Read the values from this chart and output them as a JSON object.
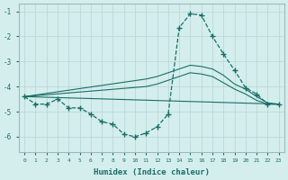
{
  "xlabel": "Humidex (Indice chaleur)",
  "background_color": "#d4eeee",
  "grid_color": "#c8dede",
  "line_color": "#1a6e66",
  "xlim": [
    -0.5,
    23.5
  ],
  "ylim": [
    -6.6,
    -0.7
  ],
  "yticks": [
    -1,
    -2,
    -3,
    -4,
    -5,
    -6
  ],
  "xticks": [
    0,
    1,
    2,
    3,
    4,
    5,
    6,
    7,
    8,
    9,
    10,
    11,
    12,
    13,
    14,
    15,
    16,
    17,
    18,
    19,
    20,
    21,
    22,
    23
  ],
  "curve_x": [
    0,
    1,
    2,
    3,
    4,
    5,
    6,
    7,
    8,
    9,
    10,
    11,
    12,
    13,
    14,
    15,
    16,
    17,
    18,
    19,
    20,
    21,
    22,
    23
  ],
  "curve_y": [
    -4.4,
    -4.7,
    -4.7,
    -4.5,
    -4.85,
    -4.85,
    -5.1,
    -5.4,
    -5.5,
    -5.9,
    -6.0,
    -5.85,
    -5.6,
    -5.1,
    -1.65,
    -1.1,
    -1.15,
    -2.0,
    -2.7,
    -3.35,
    -4.05,
    -4.3,
    -4.7,
    -4.7
  ],
  "upper_line_x": [
    0,
    11,
    12,
    13,
    14,
    15,
    16,
    17,
    18,
    19,
    20,
    21,
    22,
    23
  ],
  "upper_line_y": [
    -4.4,
    -3.7,
    -3.6,
    -3.45,
    -3.3,
    -3.15,
    -3.2,
    -3.3,
    -3.55,
    -3.9,
    -4.1,
    -4.4,
    -4.65,
    -4.7
  ],
  "lower_line_x": [
    0,
    23
  ],
  "lower_line_y": [
    -4.4,
    -4.7
  ],
  "mid_line_x": [
    0,
    11,
    12,
    13,
    14,
    15,
    16,
    17,
    18,
    19,
    20,
    21,
    22,
    23
  ],
  "mid_line_y": [
    -4.4,
    -4.0,
    -3.9,
    -3.75,
    -3.6,
    -3.45,
    -3.5,
    -3.6,
    -3.85,
    -4.1,
    -4.3,
    -4.55,
    -4.7,
    -4.7
  ]
}
